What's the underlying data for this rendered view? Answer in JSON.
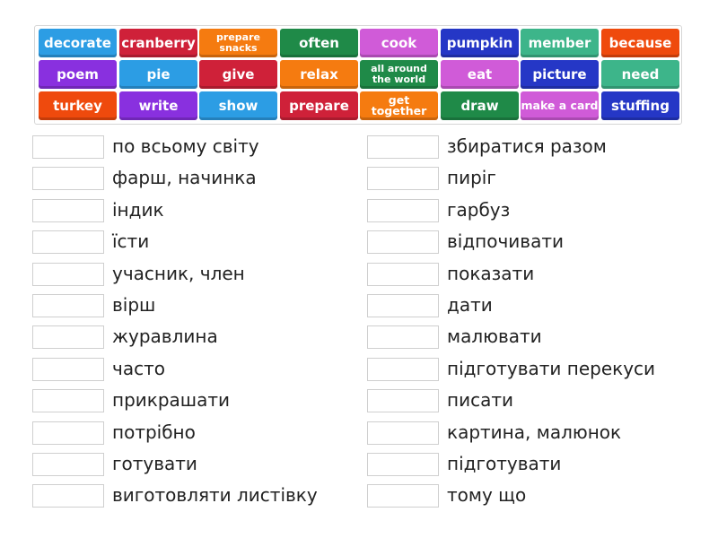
{
  "colors": {
    "blue": "#2c9de4",
    "red": "#cf2139",
    "orange": "#f57b10",
    "green": "#1f8a48",
    "violet": "#d05bd8",
    "darkblue": "#2537c6",
    "seafoam": "#3db58a",
    "orangered": "#ef4a0d",
    "purple": "#8930df"
  },
  "tiles": [
    {
      "label": "decorate",
      "color": "blue"
    },
    {
      "label": "cranberry",
      "color": "red"
    },
    {
      "label": "prepare snacks",
      "color": "orange",
      "size": "small"
    },
    {
      "label": "often",
      "color": "green"
    },
    {
      "label": "cook",
      "color": "violet"
    },
    {
      "label": "pumpkin",
      "color": "darkblue"
    },
    {
      "label": "member",
      "color": "seafoam"
    },
    {
      "label": "because",
      "color": "orangered"
    },
    {
      "label": "poem",
      "color": "purple"
    },
    {
      "label": "pie",
      "color": "blue"
    },
    {
      "label": "give",
      "color": "red"
    },
    {
      "label": "relax",
      "color": "orange"
    },
    {
      "label": "all around the world",
      "color": "green",
      "size": "small"
    },
    {
      "label": "eat",
      "color": "violet"
    },
    {
      "label": "picture",
      "color": "darkblue"
    },
    {
      "label": "need",
      "color": "seafoam"
    },
    {
      "label": "turkey",
      "color": "orangered"
    },
    {
      "label": "write",
      "color": "purple"
    },
    {
      "label": "show",
      "color": "blue"
    },
    {
      "label": "prepare",
      "color": "red"
    },
    {
      "label": "get together",
      "color": "orange",
      "size": "mid"
    },
    {
      "label": "draw",
      "color": "green"
    },
    {
      "label": "make a card",
      "color": "violet",
      "size": "mid"
    },
    {
      "label": "stuffing",
      "color": "darkblue"
    }
  ],
  "left_items": [
    "по всьому світу",
    "фарш, начинка",
    "індик",
    "їсти",
    "учасник, член",
    "вірш",
    "журавлина",
    "часто",
    "прикрашати",
    "потрібно",
    "готувати",
    "виготовляти листівку"
  ],
  "right_items": [
    "збиратися разом",
    "пиріг",
    "гарбуз",
    "відпочивати",
    "показати",
    "дати",
    "малювати",
    "підготувати перекуси",
    "писати",
    "картина, малюнок",
    "підготувати",
    "тому що"
  ]
}
